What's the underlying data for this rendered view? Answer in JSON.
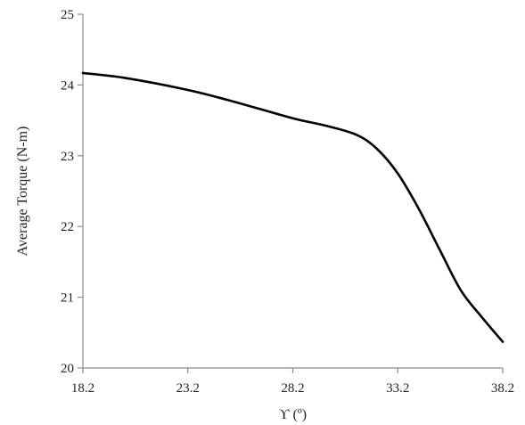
{
  "chart_data": {
    "type": "line",
    "title": "",
    "xlabel": "ϒ (º)",
    "ylabel": "Average Torque (N-m)",
    "xlim": [
      18.2,
      38.2
    ],
    "ylim": [
      20,
      25
    ],
    "x_ticks": [
      "18.2",
      "23.2",
      "28.2",
      "33.2",
      "38.2"
    ],
    "y_ticks": [
      "20",
      "21",
      "22",
      "23",
      "24",
      "25"
    ],
    "grid": false,
    "series": [
      {
        "x": [
          18.2,
          20.2,
          23.2,
          25.2,
          28.2,
          29.7,
          31.2,
          32.2,
          33.2,
          34.2,
          35.2,
          36.2,
          37.2,
          38.2
        ],
        "values": [
          24.17,
          24.1,
          23.93,
          23.78,
          23.53,
          23.43,
          23.3,
          23.1,
          22.75,
          22.25,
          21.67,
          21.1,
          20.72,
          20.37
        ],
        "color": "#000000"
      }
    ]
  }
}
